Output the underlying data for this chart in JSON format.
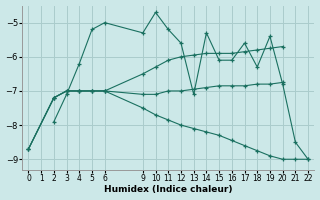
{
  "xlabel": "Humidex (Indice chaleur)",
  "bg_color": "#cce8e8",
  "grid_color": "#aacccc",
  "line_color": "#1a7060",
  "xlim": [
    -0.5,
    22.5
  ],
  "ylim": [
    -9.3,
    -4.5
  ],
  "yticks": [
    -9,
    -8,
    -7,
    -6,
    -5
  ],
  "xtick_vals": [
    0,
    1,
    2,
    3,
    4,
    5,
    6,
    9,
    10,
    11,
    12,
    13,
    14,
    15,
    16,
    17,
    18,
    19,
    20,
    21,
    22
  ],
  "lines": [
    {
      "x": [
        2,
        3,
        4,
        5,
        6,
        9,
        10,
        11,
        12,
        13,
        14,
        15,
        16,
        17,
        18,
        19,
        20,
        21,
        22
      ],
      "y": [
        -7.9,
        -7.1,
        -6.2,
        -5.2,
        -5.0,
        -5.3,
        -4.7,
        -5.2,
        -5.6,
        -7.1,
        -5.3,
        -6.1,
        -6.1,
        -5.6,
        -6.3,
        -5.4,
        -6.8,
        -8.5,
        -9.0
      ]
    },
    {
      "x": [
        0,
        2,
        3,
        4,
        5,
        6,
        9,
        10,
        11,
        12,
        13,
        14,
        15,
        16,
        17,
        18,
        19,
        20
      ],
      "y": [
        -8.7,
        -7.2,
        -7.0,
        -7.0,
        -7.0,
        -7.0,
        -6.5,
        -6.3,
        -6.1,
        -6.0,
        -5.95,
        -5.9,
        -5.9,
        -5.9,
        -5.85,
        -5.8,
        -5.75,
        -5.7
      ]
    },
    {
      "x": [
        0,
        2,
        3,
        4,
        5,
        6,
        9,
        10,
        11,
        12,
        13,
        14,
        15,
        16,
        17,
        18,
        19,
        20
      ],
      "y": [
        -8.7,
        -7.2,
        -7.0,
        -7.0,
        -7.0,
        -7.0,
        -7.1,
        -7.1,
        -7.0,
        -7.0,
        -6.95,
        -6.9,
        -6.85,
        -6.85,
        -6.85,
        -6.8,
        -6.8,
        -6.75
      ]
    },
    {
      "x": [
        0,
        2,
        3,
        4,
        5,
        6,
        9,
        10,
        11,
        12,
        13,
        14,
        15,
        16,
        17,
        18,
        19,
        20,
        21,
        22
      ],
      "y": [
        -8.7,
        -7.2,
        -7.0,
        -7.0,
        -7.0,
        -7.0,
        -7.5,
        -7.7,
        -7.85,
        -8.0,
        -8.1,
        -8.2,
        -8.3,
        -8.45,
        -8.6,
        -8.75,
        -8.9,
        -9.0,
        -9.0,
        -9.0
      ]
    }
  ]
}
